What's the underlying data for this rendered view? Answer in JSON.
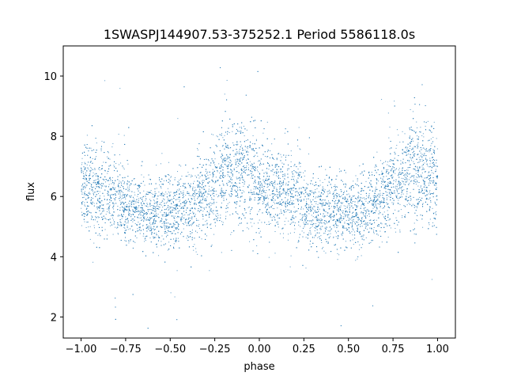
{
  "chart_data": {
    "type": "scatter",
    "title": "1SWASPJ144907.53-375252.1 Period 5586118.0s",
    "xlabel": "phase",
    "ylabel": "flux",
    "xlim": [
      -1.1,
      1.1
    ],
    "ylim": [
      1.3,
      11.0
    ],
    "xticks": [
      -1.0,
      -0.75,
      -0.5,
      -0.25,
      0.0,
      0.25,
      0.5,
      0.75,
      1.0
    ],
    "xtick_labels": [
      "−1.00",
      "−0.75",
      "−0.50",
      "−0.25",
      "0.00",
      "0.25",
      "0.50",
      "0.75",
      "1.00"
    ],
    "yticks": [
      2,
      4,
      6,
      8,
      10
    ],
    "ytick_labels": [
      "2",
      "4",
      "6",
      "8",
      "10"
    ],
    "grid": false,
    "series_color": "#1f77b4",
    "approx_point_count": 9000,
    "trend": {
      "phase": [
        -1.0,
        -0.9,
        -0.8,
        -0.7,
        -0.6,
        -0.5,
        -0.4,
        -0.3,
        -0.2,
        -0.1,
        0.0,
        0.1,
        0.2,
        0.3,
        0.4,
        0.5,
        0.6,
        0.7,
        0.8,
        0.9,
        1.0
      ],
      "flux_center": [
        6.4,
        6.1,
        6.0,
        5.6,
        5.5,
        5.5,
        5.6,
        6.0,
        6.7,
        6.8,
        6.5,
        6.1,
        6.0,
        5.6,
        5.5,
        5.5,
        5.6,
        6.0,
        6.7,
        6.8,
        6.5
      ],
      "flux_spread": [
        0.75,
        0.7,
        0.7,
        0.6,
        0.6,
        0.6,
        0.65,
        0.7,
        0.8,
        0.9,
        0.85,
        0.7,
        0.7,
        0.6,
        0.6,
        0.6,
        0.65,
        0.7,
        0.8,
        0.9,
        0.85
      ]
    }
  }
}
